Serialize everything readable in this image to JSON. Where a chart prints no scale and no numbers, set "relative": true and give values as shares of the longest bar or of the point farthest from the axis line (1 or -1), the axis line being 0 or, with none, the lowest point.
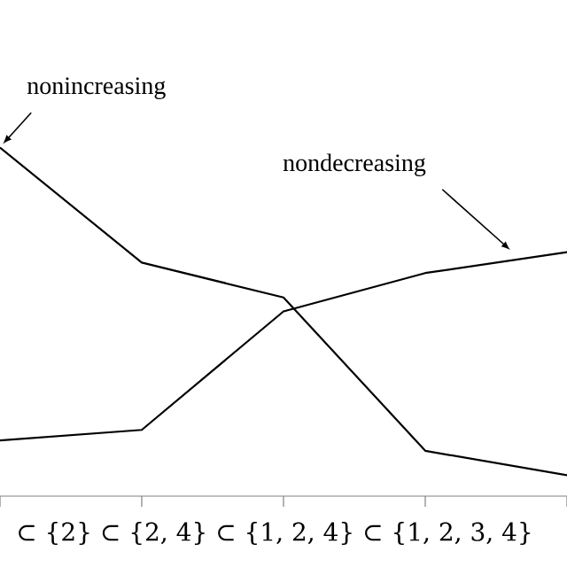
{
  "chart_data": {
    "type": "line",
    "relative": true,
    "categories": [
      null,
      null,
      null,
      null,
      null
    ],
    "xlabel": "⊂ {2} ⊂ {2, 4} ⊂ {1, 2, 4} ⊂ {1, 2, 3, 4}",
    "series": [
      {
        "name": "nonincreasing",
        "color": "#000000",
        "values": [
          1,
          0.67,
          0.57,
          0.13,
          0.06
        ]
      },
      {
        "name": "nondecreasing",
        "color": "#000000",
        "values": [
          0.16,
          0.19,
          0.53,
          0.64,
          0.7
        ]
      }
    ]
  }
}
